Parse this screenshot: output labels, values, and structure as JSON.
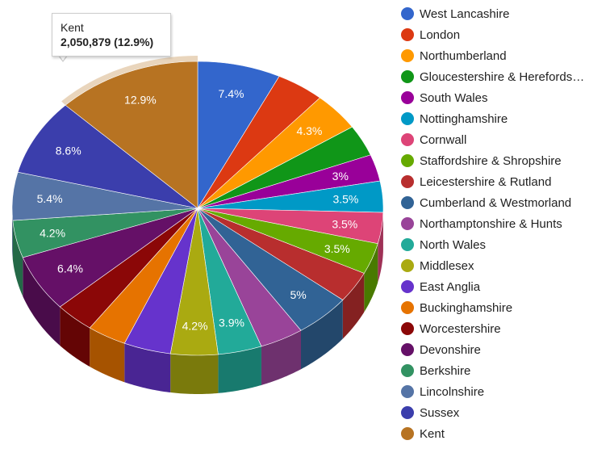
{
  "chart_data": {
    "type": "pie",
    "is3D": true,
    "legend_position": "right",
    "slices": [
      {
        "label": "West Lancashire",
        "percent": 7.4,
        "color": "#3366cc"
      },
      {
        "label": "London",
        "percent": 4.3,
        "color": "#dc3912"
      },
      {
        "label": "Northumberland",
        "percent": 4.3,
        "color": "#ff9900"
      },
      {
        "label": "Gloucestershire & Herefords…",
        "percent": 3.5,
        "color": "#109618"
      },
      {
        "label": "South Wales",
        "percent": 3,
        "color": "#990099"
      },
      {
        "label": "Nottinghamshire",
        "percent": 3.5,
        "color": "#0099c6"
      },
      {
        "label": "Cornwall",
        "percent": 3.5,
        "color": "#dd4477"
      },
      {
        "label": "Staffordshire & Shropshire",
        "percent": 3.5,
        "color": "#66aa00"
      },
      {
        "label": "Leicestershire & Rutland",
        "percent": 3.5,
        "color": "#b82e2e"
      },
      {
        "label": "Cumberland & Westmorland",
        "percent": 5,
        "color": "#316395"
      },
      {
        "label": "Northamptonshire & Hunts",
        "percent": 3.9,
        "color": "#994499"
      },
      {
        "label": "North Wales",
        "percent": 3.9,
        "color": "#22aa99"
      },
      {
        "label": "Middlesex",
        "percent": 4.2,
        "color": "#aaaa11"
      },
      {
        "label": "East Anglia",
        "percent": 4.2,
        "color": "#6633cc"
      },
      {
        "label": "Buckinghamshire",
        "percent": 3.5,
        "color": "#e67300"
      },
      {
        "label": "Worcestershire",
        "percent": 3.5,
        "color": "#8b0707"
      },
      {
        "label": "Devonshire",
        "percent": 6.4,
        "color": "#651067"
      },
      {
        "label": "Berkshire",
        "percent": 4.2,
        "color": "#329262"
      },
      {
        "label": "Lincolnshire",
        "percent": 5.4,
        "color": "#5574a6"
      },
      {
        "label": "Sussex",
        "percent": 8.6,
        "color": "#3b3eac"
      },
      {
        "label": "Kent",
        "percent": 12.9,
        "color": "#b77322"
      }
    ],
    "shown_labels": [
      "7.4%",
      "",
      "4.3%",
      "",
      "3%",
      "3.5%",
      "3.5%",
      "3.5%",
      "",
      "5%",
      "",
      "3.9%",
      "4.2%",
      "",
      "",
      "",
      "6.4%",
      "4.2%",
      "5.4%",
      "8.6%",
      "12.9%"
    ]
  },
  "tooltip": {
    "title": "Kent",
    "value": "2,050,879 (12.9%)",
    "slice_index": 20
  }
}
